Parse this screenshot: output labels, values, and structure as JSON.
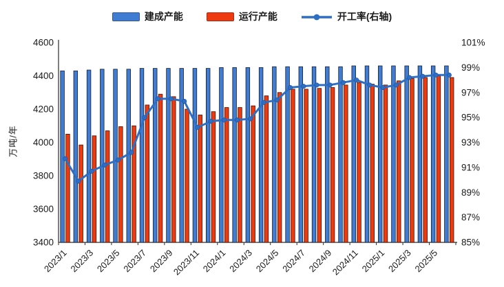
{
  "chart_data": {
    "type": "bar",
    "subtype": "grouped-bars-with-line-combo",
    "title": "",
    "legend_position": "top",
    "grid": false,
    "categories": [
      "2023/1",
      "2023/2",
      "2023/3",
      "2023/4",
      "2023/5",
      "2023/6",
      "2023/7",
      "2023/8",
      "2023/9",
      "2023/10",
      "2023/11",
      "2023/12",
      "2024/1",
      "2024/2",
      "2024/3",
      "2024/4",
      "2024/5",
      "2024/6",
      "2024/7",
      "2024/8",
      "2024/9",
      "2024/10",
      "2024/11",
      "2024/12",
      "2025/1",
      "2025/2",
      "2025/3",
      "2025/4",
      "2025/5",
      "2025/6"
    ],
    "x_tick_labels": [
      "2023/1",
      "2023/3",
      "2023/5",
      "2023/7",
      "2023/9",
      "2023/11",
      "2024/1",
      "2024/3",
      "2024/5",
      "2024/7",
      "2024/9",
      "2024/11",
      "2025/1",
      "2025/3",
      "2025/5"
    ],
    "left_axis": {
      "label": "万吨/年",
      "min": 3400,
      "max": 4600,
      "step": 200,
      "ticks": [
        "4600",
        "4400",
        "4200",
        "4000",
        "3800",
        "3600",
        "3400"
      ]
    },
    "right_axis": {
      "label": "",
      "min": 85,
      "max": 101,
      "step": 2,
      "ticks": [
        "101%",
        "99%",
        "97%",
        "95%",
        "93%",
        "91%",
        "89%",
        "87%",
        "85%"
      ]
    },
    "series": [
      {
        "name": "建成产能",
        "type": "bar",
        "axis": "left",
        "color": "#3f7cd2",
        "values": [
          4430,
          4430,
          4435,
          4440,
          4440,
          4440,
          4445,
          4445,
          4445,
          4445,
          4445,
          4445,
          4450,
          4450,
          4450,
          4450,
          4455,
          4455,
          4455,
          4455,
          4455,
          4455,
          4460,
          4460,
          4460,
          4460,
          4460,
          4460,
          4460,
          4460
        ]
      },
      {
        "name": "运行产能",
        "type": "bar",
        "axis": "left",
        "color": "#ee3a10",
        "values": [
          4050,
          3985,
          4040,
          4070,
          4095,
          4100,
          4225,
          4290,
          4275,
          4200,
          4165,
          4185,
          4210,
          4210,
          4220,
          4280,
          4300,
          4320,
          4320,
          4325,
          4330,
          4345,
          4360,
          4350,
          4345,
          4370,
          4385,
          4390,
          4400,
          4390
        ]
      },
      {
        "name": "开工率(右轴)",
        "type": "line",
        "axis": "right",
        "color": "#2e6fc6",
        "values": [
          91.7,
          89.9,
          90.7,
          91.2,
          91.6,
          92.2,
          95.0,
          96.5,
          96.5,
          96.3,
          94.2,
          94.7,
          94.8,
          94.8,
          94.9,
          96.2,
          96.4,
          97.4,
          97.5,
          97.6,
          97.6,
          97.8,
          98.0,
          97.6,
          97.4,
          97.6,
          98.2,
          98.3,
          98.4,
          98.4
        ]
      }
    ],
    "colors": {
      "built_bar": "#3f7cd2",
      "operating_bar": "#ee3a10",
      "rate_line": "#2e6fc6",
      "axis": "#2a2a2a",
      "text": "#1a1a1a"
    }
  }
}
